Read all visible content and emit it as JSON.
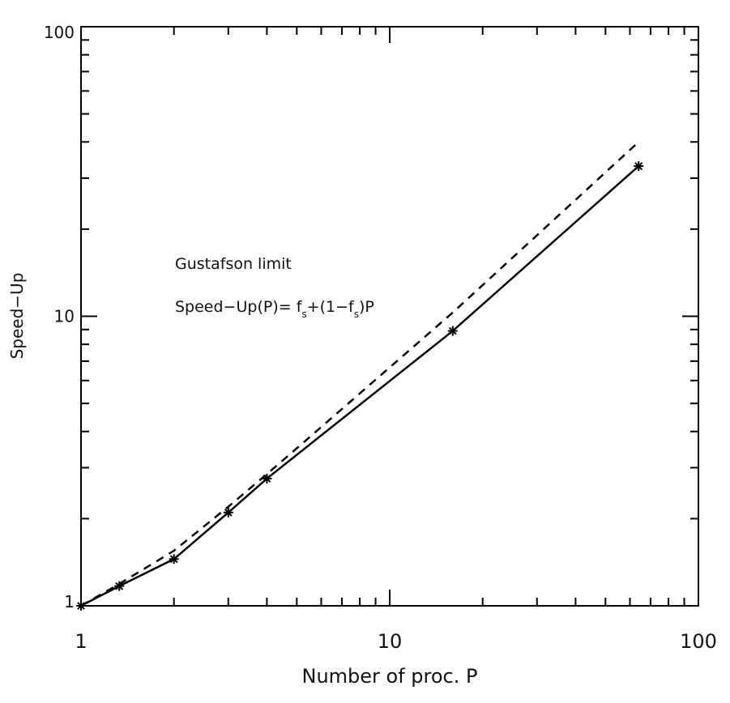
{
  "chart_data": {
    "type": "line",
    "title": "",
    "xlabel": "Number of proc. P",
    "ylabel": "Speed−Up",
    "xscale": "log",
    "yscale": "log",
    "xlim": [
      1,
      100
    ],
    "ylim": [
      1,
      100
    ],
    "grid": false,
    "x_ticks": [
      {
        "value": 1,
        "label": "1"
      },
      {
        "value": 10,
        "label": "10"
      },
      {
        "value": 100,
        "label": "100"
      }
    ],
    "y_ticks": [
      {
        "value": 1,
        "label": "1"
      },
      {
        "value": 10,
        "label": "10"
      },
      {
        "value": 100,
        "label": "100"
      }
    ],
    "series": [
      {
        "style": "solid",
        "color": "#000000",
        "marker": "star",
        "x": [
          1,
          1.33,
          2,
          3,
          4,
          16,
          64
        ],
        "y": [
          1,
          1.17,
          1.45,
          2.1,
          2.75,
          8.9,
          33
        ]
      },
      {
        "style": "dashed",
        "color": "#000000",
        "marker": "none",
        "x": [
          1,
          1.33,
          2,
          3,
          4,
          5,
          16,
          64
        ],
        "y": [
          1,
          1.19,
          1.55,
          2.2,
          2.85,
          3.5,
          10.3,
          40
        ]
      }
    ],
    "annotations": [
      {
        "text": "Gustafson limit"
      },
      {
        "text_parts": [
          "Speed−Up(P)= f",
          "s",
          "+(1−f",
          "s",
          ")P"
        ]
      }
    ]
  }
}
